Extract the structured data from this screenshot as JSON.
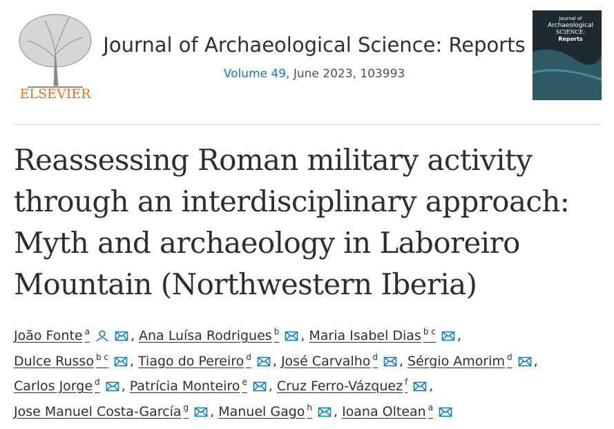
{
  "header": {
    "publisher": "ELSEVIER",
    "journal": "Journal of Archaeological Science: Reports",
    "volume": "Volume 49",
    "issue_info": ", June 2023, 103993",
    "cover": {
      "line1": "Journal of",
      "line2": "Archaeological",
      "line3": "SCIENCE:",
      "line4": "Reports"
    }
  },
  "article": {
    "title": [
      "Reassessing Roman military activity",
      "through an interdisciplinary approach:",
      "Myth and archaeology in Laboreiro",
      "Mountain (Northwestern Iberia)"
    ],
    "separator": ",",
    "author_rows": [
      [
        {
          "name": "João Fonte",
          "sup": "a"
        },
        {
          "name": "Ana Luísa Rodrigues",
          "sup": "b"
        },
        {
          "name": "Maria Isabel Dias",
          "sup": "b c"
        }
      ],
      [
        {
          "name": "Dulce Russo",
          "sup": "b c"
        },
        {
          "name": "Tiago do Pereiro",
          "sup": "d"
        },
        {
          "name": "José Carvalho",
          "sup": "d"
        },
        {
          "name": "Sérgio Amorim",
          "sup": "d"
        }
      ],
      [
        {
          "name": "Carlos Jorge",
          "sup": "d"
        },
        {
          "name": "Patrícia Monteiro",
          "sup": "e"
        },
        {
          "name": "Cruz Ferro-Vázquez",
          "sup": "f"
        }
      ],
      [
        {
          "name": "Jose Manuel Costa-García",
          "sup": "g"
        },
        {
          "name": "Manuel Gago",
          "sup": "h"
        },
        {
          "name": "Ioana Oltean",
          "sup": "a"
        }
      ]
    ]
  }
}
